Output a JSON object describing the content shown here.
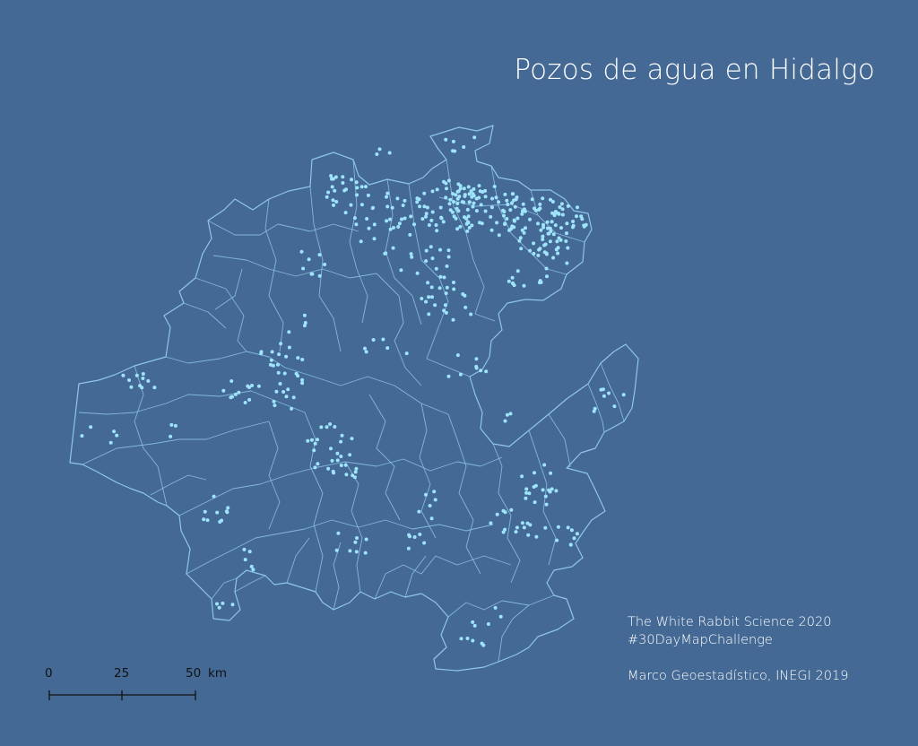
{
  "title": "Pozos de agua en Hidalgo",
  "credits": {
    "line1": "The White Rabbit Science 2020",
    "line2": "#30DayMapChallenge",
    "line3": "Marco Geoestadístico, INEGI 2019"
  },
  "scale_bar": {
    "ticks": [
      "0",
      "25",
      "50"
    ],
    "unit": "km"
  },
  "colors": {
    "background": "#446994",
    "boundary": "#8ec6e8",
    "wells": "#9ee4fb",
    "text": "#ffffff",
    "scale": "#111111"
  }
}
